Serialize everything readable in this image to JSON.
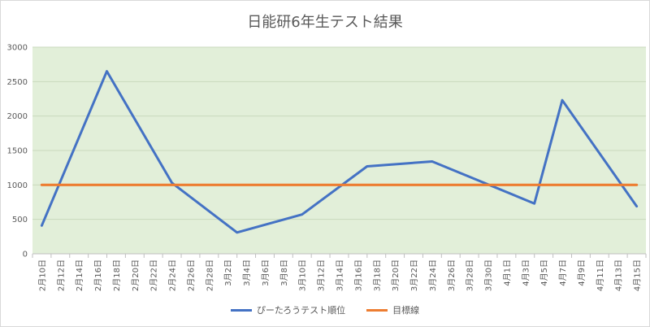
{
  "chart_data": {
    "type": "line",
    "title": "日能研6年生テスト結果",
    "xlabel": "",
    "ylabel": "",
    "ylim": [
      0,
      3000
    ],
    "yticks": [
      0,
      500,
      1000,
      1500,
      2000,
      2500,
      3000
    ],
    "grid": true,
    "plot_background": "#e2efd9",
    "legend_position": "bottom",
    "x_tick_labels": [
      "2月10日",
      "2月12日",
      "2月14日",
      "2月16日",
      "2月18日",
      "2月20日",
      "2月22日",
      "2月24日",
      "2月26日",
      "2月28日",
      "3月2日",
      "3月4日",
      "3月6日",
      "3月8日",
      "3月10日",
      "3月12日",
      "3月14日",
      "3月16日",
      "3月18日",
      "3月20日",
      "3月22日",
      "3月24日",
      "3月26日",
      "3月28日",
      "3月30日",
      "4月1日",
      "4月3日",
      "4月5日",
      "4月7日",
      "4月9日",
      "4月11日",
      "4月13日",
      "4月15日"
    ],
    "series": [
      {
        "name": "ぴーたろうテスト順位",
        "color": "#4472c4",
        "points": [
          {
            "x": "2月10日",
            "y": 410
          },
          {
            "x": "2月17日",
            "y": 2650
          },
          {
            "x": "2月24日",
            "y": 1030
          },
          {
            "x": "3月3日",
            "y": 310
          },
          {
            "x": "3月10日",
            "y": 570
          },
          {
            "x": "3月17日",
            "y": 1270
          },
          {
            "x": "3月24日",
            "y": 1340
          },
          {
            "x": "4月4日",
            "y": 730
          },
          {
            "x": "4月7日",
            "y": 2230
          },
          {
            "x": "4月15日",
            "y": 690
          }
        ]
      },
      {
        "name": "目標線",
        "color": "#ed7d31",
        "points": [
          {
            "x": "2月10日",
            "y": 1000
          },
          {
            "x": "4月15日",
            "y": 1000
          }
        ]
      }
    ]
  }
}
